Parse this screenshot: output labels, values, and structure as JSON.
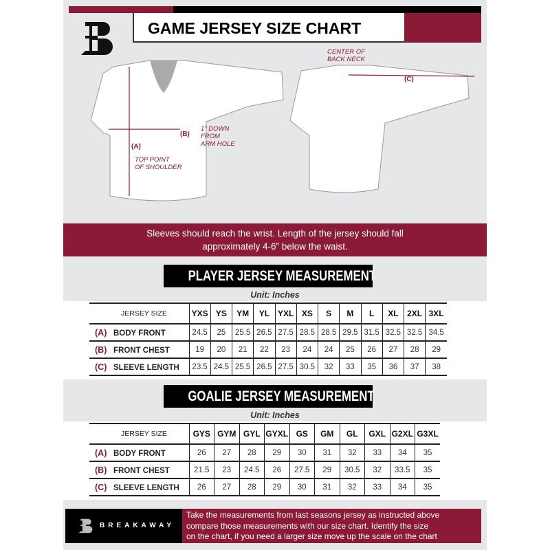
{
  "header": {
    "title": "GAME JERSEY SIZE CHART",
    "logo": "B"
  },
  "colors": {
    "brand": "#8a1a36",
    "dark": "#000000",
    "panel": "#e6e7e8"
  },
  "diagram": {
    "front": {
      "label_a": "(A)",
      "note_a": [
        "TOP POINT",
        "OF SHOULDER"
      ],
      "label_b": "(B)",
      "note_b": [
        "1\" DOWN",
        "FROM",
        "ARM HOLE"
      ]
    },
    "back": {
      "note_c": [
        "CENTER OF",
        "BACK NECK"
      ],
      "label_c": "(C)"
    }
  },
  "advice": [
    "Sleeves should reach the wrist. Length of the jersey should fall",
    "approximately 4-6” below the waist."
  ],
  "player": {
    "heading": "PLAYER JERSEY MEASUREMENTS",
    "unit": "Unit: Inches",
    "size_header": "JERSEY SIZE",
    "sizes": [
      "YXS",
      "YS",
      "YM",
      "YL",
      "YXL",
      "XS",
      "S",
      "M",
      "L",
      "XL",
      "2XL",
      "3XL"
    ],
    "rows": [
      {
        "letter": "(A)",
        "label": "BODY FRONT",
        "values": [
          "24.5",
          "25",
          "25.5",
          "26.5",
          "27.5",
          "28.5",
          "28.5",
          "29.5",
          "31.5",
          "32.5",
          "32.5",
          "34.5"
        ]
      },
      {
        "letter": "(B)",
        "label": "FRONT CHEST",
        "values": [
          "19",
          "20",
          "21",
          "22",
          "23",
          "24",
          "24",
          "25",
          "26",
          "27",
          "28",
          "29"
        ]
      },
      {
        "letter": "(C)",
        "label": "SLEEVE LENGTH",
        "values": [
          "23.5",
          "24.5",
          "25.5",
          "26.5",
          "27.5",
          "30.5",
          "32",
          "33",
          "35",
          "36",
          "37",
          "38"
        ]
      }
    ]
  },
  "goalie": {
    "heading": "GOALIE JERSEY MEASUREMENTS",
    "unit": "Unit: Inches",
    "size_header": "JERSEY SIZE",
    "sizes": [
      "GYS",
      "GYM",
      "GYL",
      "GYXL",
      "GS",
      "GM",
      "GL",
      "GXL",
      "G2XL",
      "G3XL"
    ],
    "rows": [
      {
        "letter": "(A)",
        "label": "BODY FRONT",
        "values": [
          "26",
          "27",
          "28",
          "29",
          "30",
          "31",
          "32",
          "33",
          "34",
          "35"
        ]
      },
      {
        "letter": "(B)",
        "label": "FRONT CHEST",
        "values": [
          "21.5",
          "23",
          "24.5",
          "26",
          "27.5",
          "29",
          "30.5",
          "32",
          "33.5",
          "35"
        ]
      },
      {
        "letter": "(C)",
        "label": "SLEEVE LENGTH",
        "values": [
          "26",
          "27",
          "28",
          "29",
          "30",
          "31",
          "32",
          "33",
          "34",
          "35"
        ]
      }
    ]
  },
  "footer": {
    "brand": "BREAKAWAY",
    "text": [
      "Take the measurements from last seasons jersey as instructed above",
      "compare those measurements  with our size chart. Identify the size",
      "on the chart, if you need a larger size move up the scale on the chart"
    ]
  }
}
